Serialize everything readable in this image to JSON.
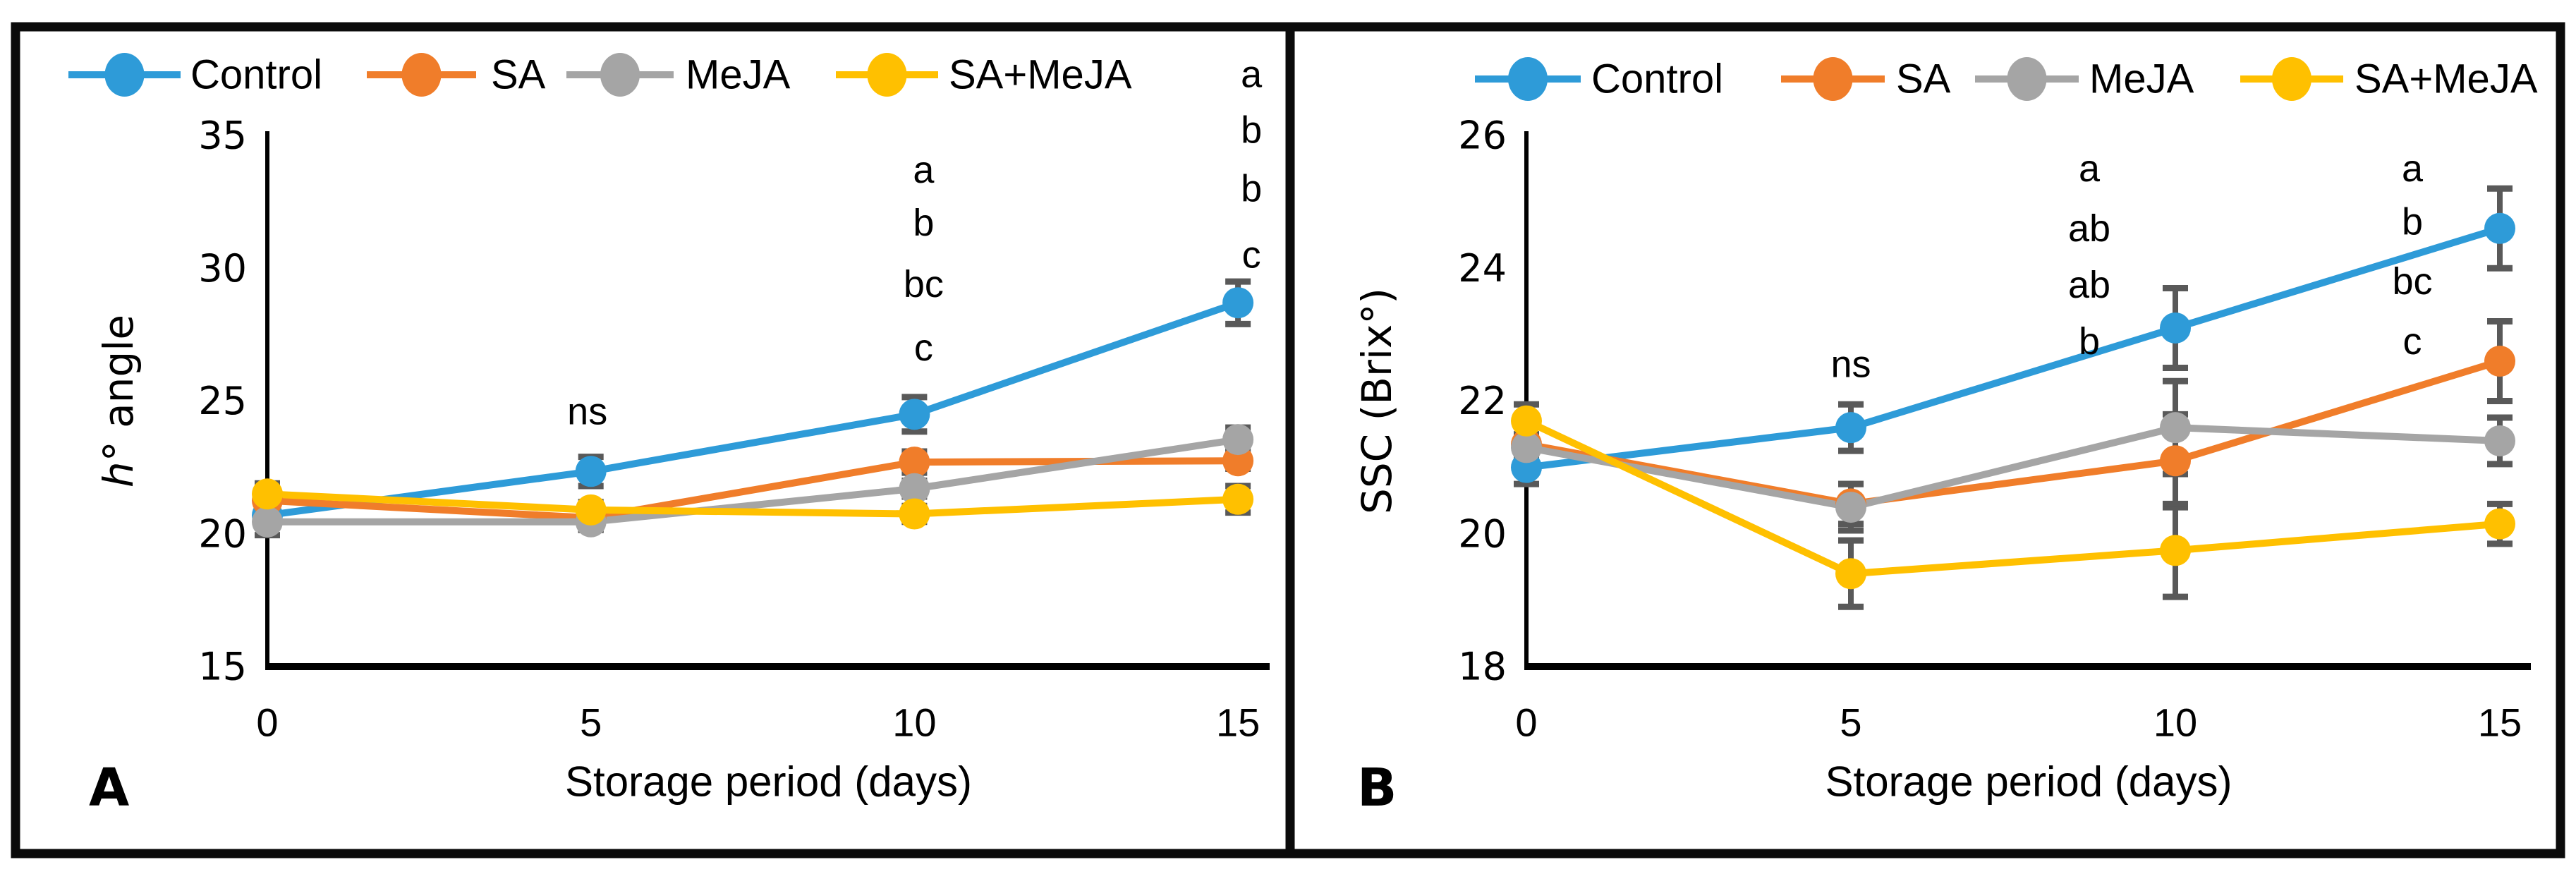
{
  "figure": {
    "description_labels": {
      "panel_a_letter": "A",
      "panel_b_letter": "B"
    }
  },
  "colors": {
    "control": "#2E9BD8",
    "sa": "#F07D2A",
    "meja": "#A5A5A5",
    "sa_meja": "#FFC000",
    "error_bar": "#595959",
    "axis": "#000000",
    "frame": "#0B0B0B",
    "text": "#000000"
  },
  "chart_data": [
    {
      "type": "line",
      "panel_label": "A",
      "title": "",
      "xlabel": "Storage period (days)",
      "ylabel": "h° angle",
      "ylabel_italic": "h",
      "ylabel_rest": "° angle",
      "x": [
        0,
        5,
        10,
        15
      ],
      "xticks": [
        0,
        5,
        10,
        15
      ],
      "ylim": [
        15,
        35
      ],
      "yticks": [
        15,
        20,
        25,
        30,
        35
      ],
      "grid": false,
      "legend_position": "top",
      "series": [
        {
          "name": "Control",
          "color_key": "control",
          "values": [
            20.7,
            22.35,
            24.5,
            28.7
          ],
          "errors": [
            0.2,
            0.55,
            0.65,
            0.8
          ]
        },
        {
          "name": "SA",
          "color_key": "sa",
          "values": [
            21.25,
            20.6,
            22.7,
            22.75
          ],
          "errors": [
            0.3,
            0.45,
            0.4,
            0.3
          ]
        },
        {
          "name": "MeJA",
          "color_key": "meja",
          "values": [
            20.45,
            20.45,
            21.7,
            23.55
          ],
          "errors": [
            0.5,
            0.3,
            0.3,
            0.45
          ]
        },
        {
          "name": "SA+MeJA",
          "color_key": "sa_meja",
          "values": [
            21.5,
            20.9,
            20.75,
            21.3
          ],
          "errors": [
            0.4,
            0.3,
            0.3,
            0.5
          ]
        }
      ],
      "annotations": [
        {
          "text": "ns",
          "day": 5,
          "value": 24.6,
          "dx": -5
        },
        {
          "text": "a",
          "day": 10,
          "value": 33.7,
          "dx": 13
        },
        {
          "text": "b",
          "day": 10,
          "value": 31.7,
          "dx": 13
        },
        {
          "text": "bc",
          "day": 10,
          "value": 29.4,
          "dx": 13
        },
        {
          "text": "c",
          "day": 10,
          "value": 27.0,
          "dx": 13
        },
        {
          "text": "a",
          "day": 15,
          "value": 37.3,
          "dx": 19
        },
        {
          "text": "b",
          "day": 15,
          "value": 35.2,
          "dx": 19
        },
        {
          "text": "b",
          "day": 15,
          "value": 33.0,
          "dx": 19
        },
        {
          "text": "c",
          "day": 15,
          "value": 30.5,
          "dx": 19
        }
      ]
    },
    {
      "type": "line",
      "panel_label": "B",
      "title": "",
      "xlabel": "Storage period (days)",
      "ylabel": "SSC (Brix°)",
      "ylabel_italic": "",
      "ylabel_rest": "SSC (Brix°)",
      "x": [
        0,
        5,
        10,
        15
      ],
      "xticks": [
        0,
        5,
        10,
        15
      ],
      "ylim": [
        18,
        26
      ],
      "yticks": [
        18,
        20,
        22,
        24,
        26
      ],
      "grid": false,
      "legend_position": "top",
      "series": [
        {
          "name": "Control",
          "color_key": "control",
          "values": [
            21.0,
            21.6,
            23.1,
            24.6
          ],
          "errors": [
            0.25,
            0.35,
            0.6,
            0.6
          ]
        },
        {
          "name": "SA",
          "color_key": "sa",
          "values": [
            21.35,
            20.45,
            21.1,
            22.6
          ],
          "errors": [
            0.15,
            0.3,
            0.7,
            0.6
          ]
        },
        {
          "name": "MeJA",
          "color_key": "meja",
          "values": [
            21.3,
            20.4,
            21.6,
            21.4
          ],
          "errors": [
            0.15,
            0.35,
            0.7,
            0.35
          ]
        },
        {
          "name": "SA+MeJA",
          "color_key": "sa_meja",
          "values": [
            21.7,
            19.4,
            19.75,
            20.15
          ],
          "errors": [
            0.25,
            0.5,
            0.7,
            0.3
          ]
        }
      ],
      "annotations": [
        {
          "text": "ns",
          "day": 5,
          "value": 22.55,
          "dx": 0
        },
        {
          "text": "a",
          "day": 10,
          "value": 25.5,
          "dx": -122
        },
        {
          "text": "ab",
          "day": 10,
          "value": 24.6,
          "dx": -122
        },
        {
          "text": "ab",
          "day": 10,
          "value": 23.75,
          "dx": -122
        },
        {
          "text": "b",
          "day": 10,
          "value": 22.9,
          "dx": -122
        },
        {
          "text": "a",
          "day": 15,
          "value": 25.5,
          "dx": -124
        },
        {
          "text": "b",
          "day": 15,
          "value": 24.7,
          "dx": -124
        },
        {
          "text": "bc",
          "day": 15,
          "value": 23.8,
          "dx": -124
        },
        {
          "text": "c",
          "day": 15,
          "value": 22.9,
          "dx": -124
        }
      ]
    }
  ]
}
